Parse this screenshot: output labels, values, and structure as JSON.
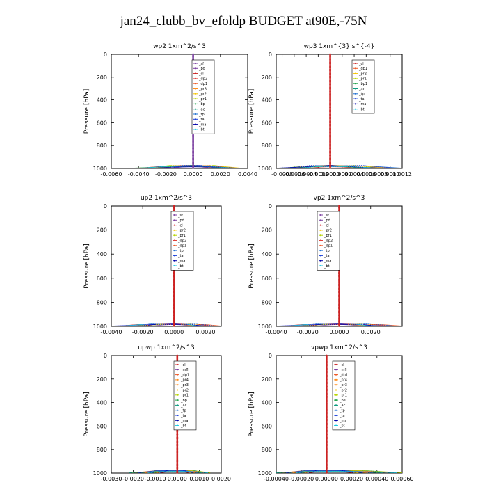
{
  "title": "jan24_clubb_bv_efoldp  BUDGET at90E,-75N",
  "colors": {
    "_sf": "#7b3fa0",
    "_pd": "#7b3fa0",
    "_cl": "#cc2222",
    "_dp2": "#e0403a",
    "_dp1": "#ee5a28",
    "_pr3": "#ff8c1a",
    "_pr2": "#f5c400",
    "_pr1": "#b8d400",
    "_bp": "#22a34a",
    "_ac": "#0f9a80",
    "_tp": "#1f6fd1",
    "_ta": "#1a3fd8",
    "_ma": "#0000aa",
    "_bt": "#19c6e0",
    "_bp1": "#22a34a",
    "_mfl": "#7b3fa0",
    "_pr4": "#ff8c1a",
    "_be": "#22a34a"
  },
  "chart_data": [
    {
      "type": "line",
      "title": "wp2   1xm^2/s^3",
      "ylabel": "Pressure [hPa]",
      "ylim": [
        1000,
        0
      ],
      "xlim": [
        -0.006,
        0.004
      ],
      "xticks": [
        "-0.0060",
        "-0.0040",
        "-0.0020",
        "0.0000",
        "0.0020",
        "0.0040"
      ],
      "yticks": [
        "0",
        "200",
        "400",
        "600",
        "800",
        "1000"
      ],
      "legend": [
        "_sf",
        "_pd",
        "_cl",
        "_dp2",
        "_dp1",
        "_pr3",
        "_pr2",
        "_pr1",
        "_bp",
        "_ac",
        "_tp",
        "_ta",
        "_ma",
        "_bt"
      ],
      "legend_position": "upper-right",
      "main_series": "_sf",
      "surface_spread": [
        -0.0045,
        0.0035
      ]
    },
    {
      "type": "line",
      "title": "wp3   1xm^{3} s^{-4}",
      "ylabel": "Pressure [hPa]",
      "ylim": [
        1000,
        0
      ],
      "xlim": [
        -0.0009,
        0.0012
      ],
      "xticks": [
        "-0.0008",
        "-0.0006",
        "-0.0004",
        "-0.0002",
        "0.0000",
        "0.0002",
        "0.0004",
        "0.0006",
        "0.0008",
        "0.0010",
        "0.0012"
      ],
      "yticks": [
        "0",
        "200",
        "400",
        "600",
        "800",
        "1000"
      ],
      "legend": [
        "_cl",
        "_dp1",
        "_pr2",
        "_pr1",
        "_bp1",
        "_ac",
        "_tp",
        "_ta",
        "_ma",
        "_bt"
      ],
      "legend_position": "upper-right",
      "main_series": "_cl",
      "surface_spread": [
        -0.0009,
        0.0012
      ]
    },
    {
      "type": "line",
      "title": "up2   1xm^2/s^3",
      "ylabel": "Pressure [hPa]",
      "ylim": [
        1000,
        0
      ],
      "xlim": [
        -0.004,
        0.003
      ],
      "xticks": [
        "-0.0040",
        "-0.0020",
        "0.0000",
        "0.0020"
      ],
      "yticks": [
        "0",
        "200",
        "400",
        "600",
        "800",
        "1000"
      ],
      "legend": [
        "_sf",
        "_pd",
        "_cl",
        "_pr2",
        "_pr1",
        "_dp2",
        "_dp1",
        "_tp",
        "_ta",
        "_ma",
        "_bt"
      ],
      "legend_position": "upper-right",
      "main_series": "_cl",
      "surface_spread": [
        -0.004,
        0.003
      ]
    },
    {
      "type": "line",
      "title": "vp2   1xm^2/s^3",
      "ylabel": "Pressure [hPa]",
      "ylim": [
        1000,
        0
      ],
      "xlim": [
        -0.004,
        0.004
      ],
      "xticks": [
        "-0.0040",
        "-0.0020",
        "0.0000",
        "0.0020"
      ],
      "yticks": [
        "0",
        "200",
        "400",
        "600",
        "800",
        "1000"
      ],
      "legend": [
        "_sf",
        "_pd",
        "_cl",
        "_pr2",
        "_pr1",
        "_dp2",
        "_dp1",
        "_tp",
        "_ta",
        "_ma",
        "_bt"
      ],
      "legend_position": "upper-right",
      "main_series": "_cl",
      "surface_spread": [
        -0.004,
        0.004
      ]
    },
    {
      "type": "line",
      "title": "upwp   1xm^2/s^3",
      "ylabel": "Pressure [hPa]",
      "ylim": [
        1000,
        0
      ],
      "xlim": [
        -0.003,
        0.002
      ],
      "xticks": [
        "-0.0030",
        "-0.0020",
        "-0.0010",
        "0.0000",
        "0.0010",
        "0.0020"
      ],
      "yticks": [
        "0",
        "200",
        "400",
        "600",
        "800",
        "1000"
      ],
      "legend": [
        "_cl",
        "_mfl",
        "_dp1",
        "_pr4",
        "_pr3",
        "_pr2",
        "_pr1",
        "_bp",
        "_ac",
        "_tp",
        "_ta",
        "_ma",
        "_bt"
      ],
      "legend_position": "upper-right",
      "main_series": "_cl",
      "surface_spread": [
        -0.0022,
        0.0015
      ]
    },
    {
      "type": "line",
      "title": "vpwp   1xm^2/s^3",
      "ylabel": "Pressure [hPa]",
      "ylim": [
        1000,
        0
      ],
      "xlim": [
        -0.0004,
        0.0006
      ],
      "xticks": [
        "-0.00040",
        "-0.00020",
        "0.00000",
        "0.00020",
        "0.00040",
        "0.00060"
      ],
      "yticks": [
        "0",
        "200",
        "400",
        "600",
        "800",
        "1000"
      ],
      "legend": [
        "_cl",
        "_mfl",
        "_dp1",
        "_pr4",
        "_pr3",
        "_pr2",
        "_pr1",
        "_be",
        "_ac",
        "_tp",
        "_ta",
        "_ma",
        "_bt"
      ],
      "legend_position": "upper-right",
      "main_series": "_cl",
      "surface_spread": [
        -0.0004,
        0.0006
      ]
    }
  ]
}
